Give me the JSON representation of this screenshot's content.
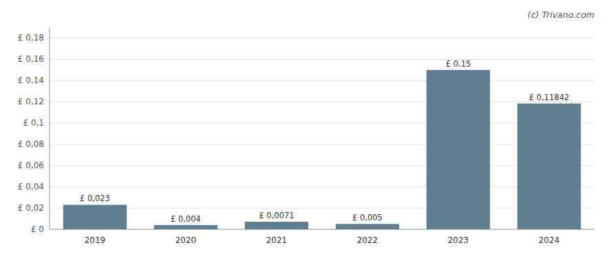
{
  "chart_data": {
    "type": "bar",
    "annotation": "(c) Trivano.com",
    "categories": [
      "2019",
      "2020",
      "2021",
      "2022",
      "2023",
      "2024"
    ],
    "values": [
      0.023,
      0.004,
      0.0071,
      0.005,
      0.15,
      0.11842
    ],
    "value_labels": [
      "£ 0,023",
      "£ 0,004",
      "£ 0,0071",
      "£ 0,005",
      "£ 0,15",
      "£ 0,11842"
    ],
    "data_labels": true,
    "color": "#5f7f90",
    "ylim": [
      0,
      0.19
    ],
    "yticks": [
      {
        "value": 0,
        "label": "£ 0"
      },
      {
        "value": 0.02,
        "label": "£ 0,02"
      },
      {
        "value": 0.04,
        "label": "£ 0,04"
      },
      {
        "value": 0.06,
        "label": "£ 0,06"
      },
      {
        "value": 0.08,
        "label": "£ 0,08"
      },
      {
        "value": 0.1,
        "label": "£ 0,1"
      },
      {
        "value": 0.12,
        "label": "£ 0,12"
      },
      {
        "value": 0.14,
        "label": "£ 0,14"
      },
      {
        "value": 0.16,
        "label": "£ 0,16"
      },
      {
        "value": 0.18,
        "label": "£ 0,18"
      }
    ],
    "grid": true
  }
}
